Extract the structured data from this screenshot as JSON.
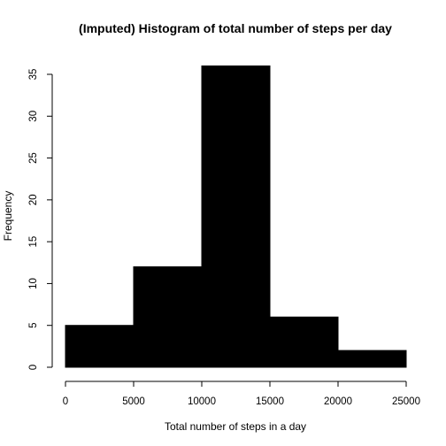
{
  "chart_data": {
    "type": "bar",
    "title": "(Imputed) Histogram of total number of steps per day",
    "xlabel": "Total number of steps in a day",
    "ylabel": "Frequency",
    "bins": [
      {
        "start": 0,
        "end": 5000,
        "count": 5
      },
      {
        "start": 5000,
        "end": 10000,
        "count": 12
      },
      {
        "start": 10000,
        "end": 15000,
        "count": 36
      },
      {
        "start": 15000,
        "end": 20000,
        "count": 6
      },
      {
        "start": 20000,
        "end": 25000,
        "count": 2
      }
    ],
    "xlim": [
      0,
      25000
    ],
    "ylim": [
      0,
      35
    ],
    "xticks": [
      0,
      5000,
      10000,
      15000,
      20000,
      25000
    ],
    "yticks": [
      0,
      5,
      10,
      15,
      20,
      25,
      30,
      35
    ],
    "grid": false,
    "bar_color": "#000000"
  }
}
